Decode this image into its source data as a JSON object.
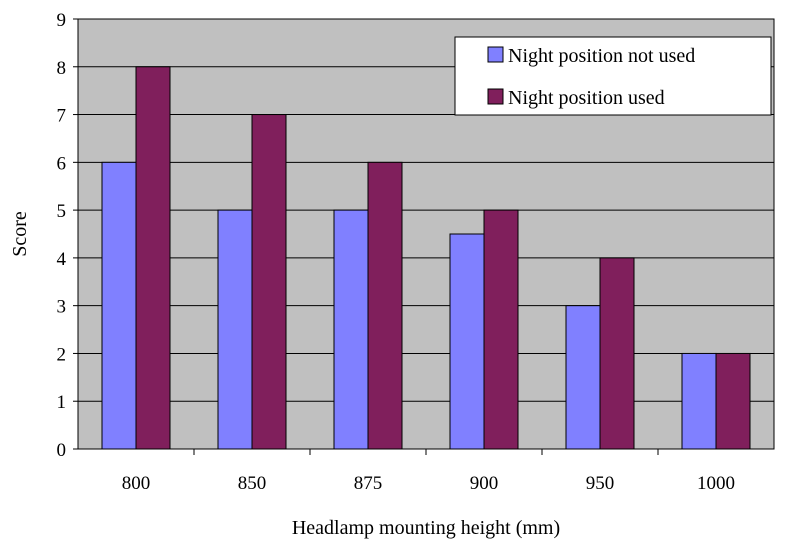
{
  "chart_data": {
    "type": "bar",
    "categories": [
      "800",
      "850",
      "875",
      "900",
      "950",
      "1000"
    ],
    "series": [
      {
        "name": "Night position not used",
        "values": [
          6,
          5,
          5,
          4.5,
          3,
          2
        ],
        "color": "#8080ff"
      },
      {
        "name": "Night position used",
        "values": [
          8,
          7,
          6,
          5,
          4,
          2
        ],
        "color": "#801f5c"
      }
    ],
    "xlabel": "Headlamp mounting height (mm)",
    "ylabel": "Score",
    "ylim": [
      0,
      9
    ],
    "yticks": [
      "0",
      "1",
      "2",
      "3",
      "4",
      "5",
      "6",
      "7",
      "8",
      "9"
    ],
    "grid": true,
    "legend_position": "top-right",
    "plot_background": "#c0c0c0"
  }
}
